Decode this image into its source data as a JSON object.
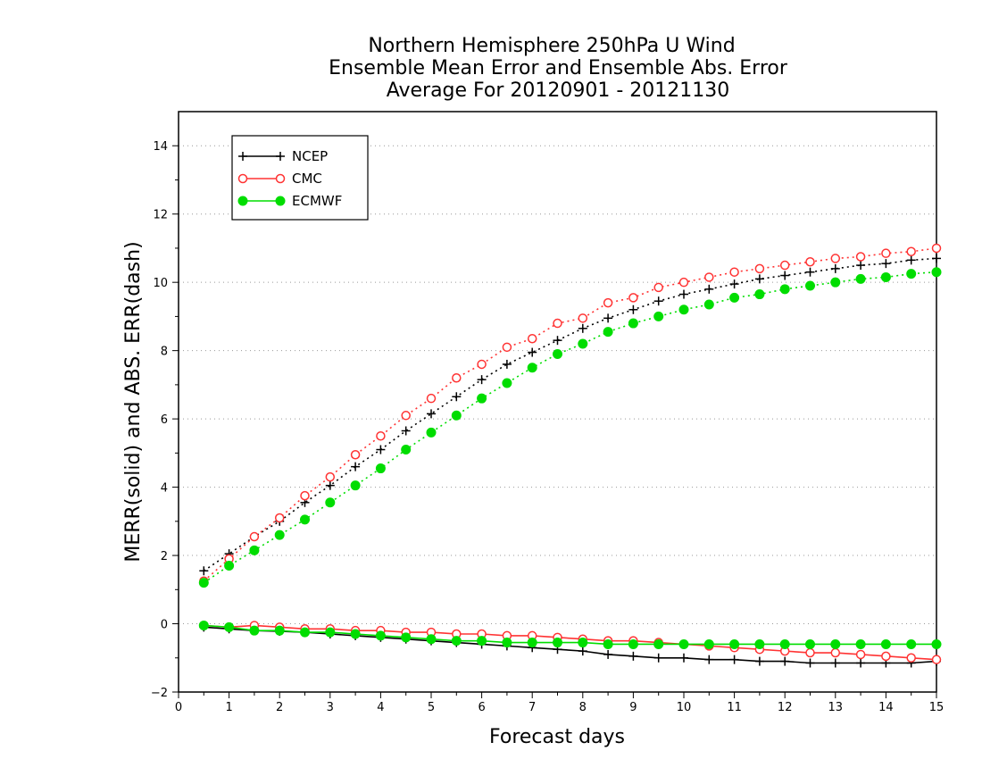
{
  "chart_data": {
    "type": "line",
    "title_lines": [
      "Northern Hemisphere 250hPa U Wind",
      "Ensemble Mean Error and Ensemble Abs. Error",
      "Average For 20120901 - 20121130"
    ],
    "xlabel": "Forecast days",
    "ylabel": "MERR(solid) and ABS. ERR(dash)",
    "xlim": [
      0,
      15
    ],
    "ylim": [
      -2,
      15
    ],
    "xticks": [
      "0",
      "1",
      "2",
      "3",
      "4",
      "5",
      "6",
      "7",
      "8",
      "9",
      "10",
      "11",
      "12",
      "13",
      "14",
      "15"
    ],
    "yticks": [
      "−2",
      "0",
      "2",
      "4",
      "6",
      "8",
      "10",
      "12",
      "14"
    ],
    "grid": "horizontal dotted",
    "legend_position": "top-left",
    "x": [
      0.5,
      1,
      1.5,
      2,
      2.5,
      3,
      3.5,
      4,
      4.5,
      5,
      5.5,
      6,
      6.5,
      7,
      7.5,
      8,
      8.5,
      9,
      9.5,
      10,
      10.5,
      11,
      11.5,
      12,
      12.5,
      13,
      13.5,
      14,
      14.5,
      15
    ],
    "series": [
      {
        "name": "NCEP",
        "color": "#000000",
        "marker": "plus",
        "abs_error": [
          1.55,
          2.05,
          2.55,
          3.0,
          3.55,
          4.05,
          4.6,
          5.1,
          5.65,
          6.15,
          6.65,
          7.15,
          7.6,
          7.95,
          8.3,
          8.65,
          8.95,
          9.2,
          9.45,
          9.65,
          9.8,
          9.95,
          10.1,
          10.2,
          10.3,
          10.4,
          10.5,
          10.55,
          10.65,
          10.7
        ],
        "mean_error": [
          -0.1,
          -0.15,
          -0.2,
          -0.22,
          -0.25,
          -0.3,
          -0.35,
          -0.4,
          -0.45,
          -0.5,
          -0.55,
          -0.6,
          -0.65,
          -0.7,
          -0.75,
          -0.8,
          -0.9,
          -0.95,
          -1.0,
          -1.0,
          -1.05,
          -1.05,
          -1.1,
          -1.1,
          -1.15,
          -1.15,
          -1.15,
          -1.15,
          -1.15,
          -1.1
        ]
      },
      {
        "name": "CMC",
        "color": "#ff3333",
        "marker": "open-circle",
        "abs_error": [
          1.25,
          1.9,
          2.55,
          3.1,
          3.75,
          4.3,
          4.95,
          5.5,
          6.1,
          6.6,
          7.2,
          7.6,
          8.1,
          8.35,
          8.8,
          8.95,
          9.4,
          9.55,
          9.85,
          10.0,
          10.15,
          10.3,
          10.4,
          10.5,
          10.6,
          10.7,
          10.75,
          10.85,
          10.9,
          11.0
        ],
        "mean_error": [
          -0.05,
          -0.1,
          -0.05,
          -0.1,
          -0.15,
          -0.15,
          -0.2,
          -0.2,
          -0.25,
          -0.25,
          -0.3,
          -0.3,
          -0.35,
          -0.35,
          -0.4,
          -0.45,
          -0.5,
          -0.5,
          -0.55,
          -0.6,
          -0.65,
          -0.7,
          -0.75,
          -0.8,
          -0.85,
          -0.85,
          -0.9,
          -0.95,
          -1.0,
          -1.05
        ]
      },
      {
        "name": "ECMWF",
        "color": "#00dd00",
        "marker": "filled-circle",
        "abs_error": [
          1.2,
          1.7,
          2.15,
          2.6,
          3.05,
          3.55,
          4.05,
          4.55,
          5.1,
          5.6,
          6.1,
          6.6,
          7.05,
          7.5,
          7.9,
          8.2,
          8.55,
          8.8,
          9.0,
          9.2,
          9.35,
          9.55,
          9.65,
          9.8,
          9.9,
          10.0,
          10.1,
          10.15,
          10.25,
          10.3
        ],
        "mean_error": [
          -0.05,
          -0.1,
          -0.2,
          -0.2,
          -0.25,
          -0.25,
          -0.3,
          -0.35,
          -0.4,
          -0.45,
          -0.5,
          -0.5,
          -0.55,
          -0.55,
          -0.55,
          -0.55,
          -0.6,
          -0.6,
          -0.6,
          -0.6,
          -0.6,
          -0.6,
          -0.6,
          -0.6,
          -0.6,
          -0.6,
          -0.6,
          -0.6,
          -0.6,
          -0.6
        ]
      }
    ]
  }
}
